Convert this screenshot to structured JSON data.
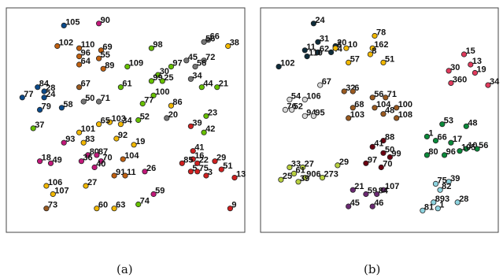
{
  "captions": {
    "a": "(a)",
    "b": "(b)"
  },
  "palette": {
    "navy": "#0b4a8a",
    "magenta": "#c2187a",
    "orange": "#c06010",
    "yellow": "#f2b800",
    "green": "#66c000",
    "gray": "#777777",
    "red": "#d02020",
    "brown": "#9a5a20",
    "darkslate": "#0e2c3a",
    "pink": "#e03a5c",
    "lightgray": "#d8d8d8",
    "darkgreen": "#0a8a3a",
    "maroon": "#6a0010",
    "olive": "#b8d040",
    "purple": "#6a2a72",
    "lightblue": "#8ed4e0"
  },
  "chart_data": [
    {
      "type": "scatter",
      "panel": "a",
      "xlim": [
        0,
        1
      ],
      "ylim": [
        0,
        1
      ],
      "points": [
        {
          "label": "105",
          "x": 0.22,
          "y": 0.96,
          "c": "navy"
        },
        {
          "label": "90",
          "x": 0.38,
          "y": 0.97,
          "c": "magenta"
        },
        {
          "label": "102",
          "x": 0.19,
          "y": 0.86,
          "c": "orange"
        },
        {
          "label": "110",
          "x": 0.29,
          "y": 0.85,
          "c": "orange"
        },
        {
          "label": "69",
          "x": 0.39,
          "y": 0.84,
          "c": "orange"
        },
        {
          "label": "96",
          "x": 0.29,
          "y": 0.81,
          "c": "orange"
        },
        {
          "label": "55",
          "x": 0.38,
          "y": 0.8,
          "c": "orange"
        },
        {
          "label": "64",
          "x": 0.29,
          "y": 0.77,
          "c": "orange"
        },
        {
          "label": "89",
          "x": 0.4,
          "y": 0.75,
          "c": "orange"
        },
        {
          "label": "109",
          "x": 0.51,
          "y": 0.76,
          "c": "green"
        },
        {
          "label": "98",
          "x": 0.62,
          "y": 0.85,
          "c": "green"
        },
        {
          "label": "30",
          "x": 0.65,
          "y": 0.72,
          "c": "green"
        },
        {
          "label": "99",
          "x": 0.62,
          "y": 0.69,
          "c": "green"
        },
        {
          "label": "25",
          "x": 0.67,
          "y": 0.69,
          "c": "green"
        },
        {
          "label": "100",
          "x": 0.63,
          "y": 0.62,
          "c": "green"
        },
        {
          "label": "61",
          "x": 0.48,
          "y": 0.66,
          "c": "green"
        },
        {
          "label": "77",
          "x": 0.58,
          "y": 0.58,
          "c": "green"
        },
        {
          "label": "97",
          "x": 0.71,
          "y": 0.76,
          "c": "green"
        },
        {
          "label": "52",
          "x": 0.56,
          "y": 0.5,
          "c": "green"
        },
        {
          "label": "44",
          "x": 0.85,
          "y": 0.66,
          "c": "green"
        },
        {
          "label": "21",
          "x": 0.92,
          "y": 0.66,
          "c": "green"
        },
        {
          "label": "23",
          "x": 0.87,
          "y": 0.52,
          "c": "green"
        },
        {
          "label": "42",
          "x": 0.86,
          "y": 0.44,
          "c": "green"
        },
        {
          "label": "74",
          "x": 0.56,
          "y": 0.09,
          "c": "green"
        },
        {
          "label": "37",
          "x": 0.08,
          "y": 0.46,
          "c": "green"
        },
        {
          "label": "66",
          "x": 0.88,
          "y": 0.89,
          "c": "gray"
        },
        {
          "label": "56",
          "x": 0.86,
          "y": 0.88,
          "c": "gray"
        },
        {
          "label": "45",
          "x": 0.78,
          "y": 0.79,
          "c": "gray"
        },
        {
          "label": "72",
          "x": 0.86,
          "y": 0.79,
          "c": "gray"
        },
        {
          "label": "56",
          "x": 0.82,
          "y": 0.76,
          "c": "gray"
        },
        {
          "label": "34",
          "x": 0.8,
          "y": 0.7,
          "c": "gray"
        },
        {
          "label": "50",
          "x": 0.31,
          "y": 0.59,
          "c": "gray"
        },
        {
          "label": "71",
          "x": 0.38,
          "y": 0.59,
          "c": "gray"
        },
        {
          "label": "20",
          "x": 0.69,
          "y": 0.51,
          "c": "gray"
        },
        {
          "label": "38",
          "x": 0.97,
          "y": 0.86,
          "c": "yellow"
        },
        {
          "label": "86",
          "x": 0.71,
          "y": 0.57,
          "c": "yellow"
        },
        {
          "label": "103",
          "x": 0.43,
          "y": 0.49,
          "c": "yellow"
        },
        {
          "label": "65",
          "x": 0.38,
          "y": 0.48,
          "c": "yellow"
        },
        {
          "label": "34",
          "x": 0.48,
          "y": 0.48,
          "c": "yellow"
        },
        {
          "label": "101",
          "x": 0.29,
          "y": 0.44,
          "c": "yellow"
        },
        {
          "label": "83",
          "x": 0.31,
          "y": 0.39,
          "c": "yellow"
        },
        {
          "label": "92",
          "x": 0.46,
          "y": 0.41,
          "c": "yellow"
        },
        {
          "label": "19",
          "x": 0.54,
          "y": 0.38,
          "c": "yellow"
        },
        {
          "label": "106",
          "x": 0.14,
          "y": 0.18,
          "c": "yellow"
        },
        {
          "label": "27",
          "x": 0.32,
          "y": 0.18,
          "c": "yellow"
        },
        {
          "label": "107",
          "x": 0.17,
          "y": 0.14,
          "c": "yellow"
        },
        {
          "label": "60",
          "x": 0.37,
          "y": 0.07,
          "c": "yellow"
        },
        {
          "label": "63",
          "x": 0.45,
          "y": 0.07,
          "c": "yellow"
        },
        {
          "label": "84",
          "x": 0.1,
          "y": 0.66,
          "c": "navy"
        },
        {
          "label": "28",
          "x": 0.13,
          "y": 0.64,
          "c": "navy"
        },
        {
          "label": "77",
          "x": 0.03,
          "y": 0.61,
          "c": "navy"
        },
        {
          "label": "24",
          "x": 0.13,
          "y": 0.61,
          "c": "navy"
        },
        {
          "label": "79",
          "x": 0.11,
          "y": 0.55,
          "c": "navy"
        },
        {
          "label": "58",
          "x": 0.21,
          "y": 0.56,
          "c": "navy"
        },
        {
          "label": "67",
          "x": 0.29,
          "y": 0.66,
          "c": "brown"
        },
        {
          "label": "93",
          "x": 0.22,
          "y": 0.39,
          "c": "magenta"
        },
        {
          "label": "80",
          "x": 0.33,
          "y": 0.33,
          "c": "magenta"
        },
        {
          "label": "87",
          "x": 0.37,
          "y": 0.33,
          "c": "magenta"
        },
        {
          "label": "18",
          "x": 0.11,
          "y": 0.3,
          "c": "magenta"
        },
        {
          "label": "49",
          "x": 0.16,
          "y": 0.29,
          "c": "magenta"
        },
        {
          "label": "36",
          "x": 0.3,
          "y": 0.3,
          "c": "magenta"
        },
        {
          "label": "70",
          "x": 0.39,
          "y": 0.3,
          "c": "magenta"
        },
        {
          "label": "40",
          "x": 0.36,
          "y": 0.27,
          "c": "magenta"
        },
        {
          "label": "104",
          "x": 0.49,
          "y": 0.31,
          "c": "orange"
        },
        {
          "label": "91",
          "x": 0.45,
          "y": 0.23,
          "c": "orange"
        },
        {
          "label": "11",
          "x": 0.5,
          "y": 0.23,
          "c": "orange"
        },
        {
          "label": "26",
          "x": 0.59,
          "y": 0.25,
          "c": "magenta"
        },
        {
          "label": "59",
          "x": 0.63,
          "y": 0.14,
          "c": "magenta"
        },
        {
          "label": "73",
          "x": 0.14,
          "y": 0.07,
          "c": "brown"
        },
        {
          "label": "39",
          "x": 0.8,
          "y": 0.47,
          "c": "red"
        },
        {
          "label": "41",
          "x": 0.81,
          "y": 0.35,
          "c": "red"
        },
        {
          "label": "16",
          "x": 0.81,
          "y": 0.31,
          "c": "red"
        },
        {
          "label": "85",
          "x": 0.76,
          "y": 0.29,
          "c": "red"
        },
        {
          "label": "22",
          "x": 0.83,
          "y": 0.29,
          "c": "red"
        },
        {
          "label": "29",
          "x": 0.91,
          "y": 0.3,
          "c": "red"
        },
        {
          "label": "5",
          "x": 0.8,
          "y": 0.25,
          "c": "red"
        },
        {
          "label": "75",
          "x": 0.83,
          "y": 0.25,
          "c": "red"
        },
        {
          "label": "3",
          "x": 0.87,
          "y": 0.23,
          "c": "red"
        },
        {
          "label": "51",
          "x": 0.94,
          "y": 0.26,
          "c": "red"
        },
        {
          "label": "13",
          "x": 1.0,
          "y": 0.22,
          "c": "red"
        },
        {
          "label": "9",
          "x": 0.98,
          "y": 0.07,
          "c": "red"
        }
      ]
    },
    {
      "type": "scatter",
      "panel": "b",
      "xlim": [
        0,
        1
      ],
      "ylim": [
        0,
        1
      ],
      "points": [
        {
          "label": "24",
          "x": 0.2,
          "y": 0.97,
          "c": "darkslate"
        },
        {
          "label": "31",
          "x": 0.22,
          "y": 0.88,
          "c": "darkslate"
        },
        {
          "label": "11",
          "x": 0.16,
          "y": 0.84,
          "c": "darkslate"
        },
        {
          "label": "20",
          "x": 0.3,
          "y": 0.86,
          "c": "darkslate"
        },
        {
          "label": "62",
          "x": 0.22,
          "y": 0.83,
          "c": "darkslate"
        },
        {
          "label": "44",
          "x": 0.28,
          "y": 0.83,
          "c": "darkslate"
        },
        {
          "label": "110",
          "x": 0.17,
          "y": 0.81,
          "c": "darkslate"
        },
        {
          "label": "102",
          "x": 0.04,
          "y": 0.76,
          "c": "darkslate"
        },
        {
          "label": "78",
          "x": 0.48,
          "y": 0.91,
          "c": "yellow"
        },
        {
          "label": "3",
          "x": 0.3,
          "y": 0.85,
          "c": "yellow"
        },
        {
          "label": "10",
          "x": 0.35,
          "y": 0.85,
          "c": "yellow"
        },
        {
          "label": "162",
          "x": 0.47,
          "y": 0.85,
          "c": "yellow"
        },
        {
          "label": "8",
          "x": 0.46,
          "y": 0.82,
          "c": "yellow"
        },
        {
          "label": "57",
          "x": 0.36,
          "y": 0.78,
          "c": "yellow"
        },
        {
          "label": "51",
          "x": 0.52,
          "y": 0.78,
          "c": "yellow"
        },
        {
          "label": "15",
          "x": 0.89,
          "y": 0.82,
          "c": "pink"
        },
        {
          "label": "13",
          "x": 0.92,
          "y": 0.77,
          "c": "pink"
        },
        {
          "label": "30",
          "x": 0.82,
          "y": 0.74,
          "c": "pink"
        },
        {
          "label": "19",
          "x": 0.94,
          "y": 0.73,
          "c": "pink"
        },
        {
          "label": "360",
          "x": 0.83,
          "y": 0.68,
          "c": "pink"
        },
        {
          "label": "34",
          "x": 1.0,
          "y": 0.67,
          "c": "pink"
        },
        {
          "label": "67",
          "x": 0.23,
          "y": 0.67,
          "c": "lightgray"
        },
        {
          "label": "54",
          "x": 0.09,
          "y": 0.6,
          "c": "lightgray"
        },
        {
          "label": "106",
          "x": 0.16,
          "y": 0.6,
          "c": "lightgray"
        },
        {
          "label": "76",
          "x": 0.07,
          "y": 0.55,
          "c": "lightgray"
        },
        {
          "label": "52",
          "x": 0.1,
          "y": 0.55,
          "c": "lightgray"
        },
        {
          "label": "94",
          "x": 0.16,
          "y": 0.52,
          "c": "lightgray"
        },
        {
          "label": "95",
          "x": 0.2,
          "y": 0.52,
          "c": "lightgray"
        },
        {
          "label": "32",
          "x": 0.34,
          "y": 0.64,
          "c": "brown"
        },
        {
          "label": "6",
          "x": 0.38,
          "y": 0.64,
          "c": "brown"
        },
        {
          "label": "56",
          "x": 0.47,
          "y": 0.61,
          "c": "brown"
        },
        {
          "label": "71",
          "x": 0.53,
          "y": 0.61,
          "c": "brown"
        },
        {
          "label": "68",
          "x": 0.38,
          "y": 0.56,
          "c": "brown"
        },
        {
          "label": "104",
          "x": 0.48,
          "y": 0.56,
          "c": "brown"
        },
        {
          "label": "100",
          "x": 0.58,
          "y": 0.56,
          "c": "brown"
        },
        {
          "label": "48",
          "x": 0.52,
          "y": 0.53,
          "c": "brown"
        },
        {
          "label": "103",
          "x": 0.36,
          "y": 0.51,
          "c": "brown"
        },
        {
          "label": "108",
          "x": 0.58,
          "y": 0.51,
          "c": "brown"
        },
        {
          "label": "53",
          "x": 0.79,
          "y": 0.48,
          "c": "darkgreen"
        },
        {
          "label": "48",
          "x": 0.9,
          "y": 0.47,
          "c": "darkgreen"
        },
        {
          "label": "1",
          "x": 0.72,
          "y": 0.42,
          "c": "darkgreen"
        },
        {
          "label": "66",
          "x": 0.76,
          "y": 0.4,
          "c": "darkgreen"
        },
        {
          "label": "17",
          "x": 0.83,
          "y": 0.39,
          "c": "darkgreen"
        },
        {
          "label": "10",
          "x": 0.9,
          "y": 0.36,
          "c": "darkgreen"
        },
        {
          "label": "56",
          "x": 0.95,
          "y": 0.36,
          "c": "darkgreen"
        },
        {
          "label": "80",
          "x": 0.72,
          "y": 0.33,
          "c": "darkgreen"
        },
        {
          "label": "96",
          "x": 0.8,
          "y": 0.33,
          "c": "darkgreen"
        },
        {
          "label": "105",
          "x": 0.87,
          "y": 0.35,
          "c": "darkgreen"
        },
        {
          "label": "88",
          "x": 0.52,
          "y": 0.4,
          "c": "maroon"
        },
        {
          "label": "41",
          "x": 0.47,
          "y": 0.37,
          "c": "maroon"
        },
        {
          "label": "50",
          "x": 0.52,
          "y": 0.34,
          "c": "maroon"
        },
        {
          "label": "99",
          "x": 0.55,
          "y": 0.32,
          "c": "maroon"
        },
        {
          "label": "97",
          "x": 0.44,
          "y": 0.29,
          "c": "maroon"
        },
        {
          "label": "70",
          "x": 0.51,
          "y": 0.27,
          "c": "maroon"
        },
        {
          "label": "33",
          "x": 0.09,
          "y": 0.27,
          "c": "olive"
        },
        {
          "label": "27",
          "x": 0.15,
          "y": 0.27,
          "c": "olive"
        },
        {
          "label": "29",
          "x": 0.31,
          "y": 0.28,
          "c": "olive"
        },
        {
          "label": "61",
          "x": 0.11,
          "y": 0.24,
          "c": "olive"
        },
        {
          "label": "906",
          "x": 0.16,
          "y": 0.22,
          "c": "olive"
        },
        {
          "label": "273",
          "x": 0.24,
          "y": 0.22,
          "c": "olive"
        },
        {
          "label": "25",
          "x": 0.05,
          "y": 0.21,
          "c": "olive"
        },
        {
          "label": "39",
          "x": 0.13,
          "y": 0.2,
          "c": "olive"
        },
        {
          "label": "21",
          "x": 0.38,
          "y": 0.16,
          "c": "purple"
        },
        {
          "label": "107",
          "x": 0.52,
          "y": 0.16,
          "c": "purple"
        },
        {
          "label": "59",
          "x": 0.44,
          "y": 0.14,
          "c": "purple"
        },
        {
          "label": "84",
          "x": 0.49,
          "y": 0.14,
          "c": "purple"
        },
        {
          "label": "45",
          "x": 0.36,
          "y": 0.08,
          "c": "purple"
        },
        {
          "label": "46",
          "x": 0.47,
          "y": 0.08,
          "c": "purple"
        },
        {
          "label": "39",
          "x": 0.82,
          "y": 0.2,
          "c": "lightblue"
        },
        {
          "label": "75",
          "x": 0.76,
          "y": 0.19,
          "c": "lightblue"
        },
        {
          "label": "82",
          "x": 0.78,
          "y": 0.16,
          "c": "lightblue"
        },
        {
          "label": "893",
          "x": 0.75,
          "y": 0.1,
          "c": "lightblue"
        },
        {
          "label": "28",
          "x": 0.86,
          "y": 0.1,
          "c": "lightblue"
        },
        {
          "label": "81",
          "x": 0.7,
          "y": 0.06,
          "c": "lightblue"
        },
        {
          "label": "1",
          "x": 0.77,
          "y": 0.07,
          "c": "lightblue"
        }
      ]
    }
  ]
}
